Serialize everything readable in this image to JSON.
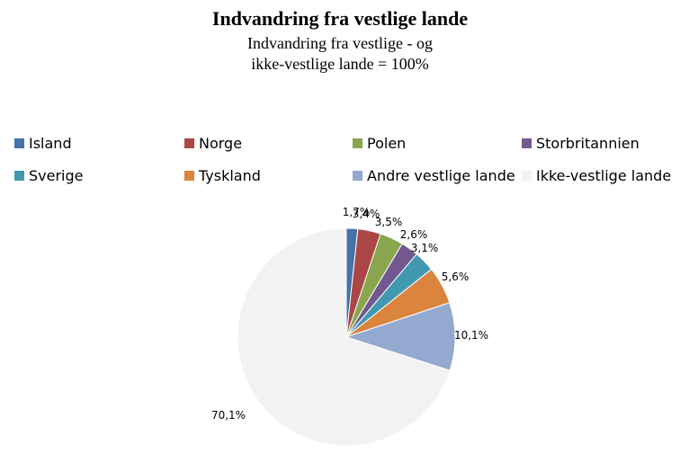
{
  "chart_data": {
    "type": "pie",
    "title": "Indvandring fra vestlige lande",
    "subtitle_lines": [
      "Indvandring fra vestlige - og",
      "ikke-vestlige lande = 100%"
    ],
    "legend_position": "top",
    "slices": [
      {
        "name": "Island",
        "value": 1.7,
        "label": "1,7%",
        "color": "#4572A7"
      },
      {
        "name": "Norge",
        "value": 3.4,
        "label": "3,4%",
        "color": "#AA4643"
      },
      {
        "name": "Polen",
        "value": 3.5,
        "label": "3,5%",
        "color": "#89A54E"
      },
      {
        "name": "Storbritannien",
        "value": 2.6,
        "label": "2,6%",
        "color": "#71588F"
      },
      {
        "name": "Sverige",
        "value": 3.1,
        "label": "3,1%",
        "color": "#4198AF"
      },
      {
        "name": "Tyskland",
        "value": 5.6,
        "label": "5,6%",
        "color": "#DB843D"
      },
      {
        "name": "Andre vestlige lande",
        "value": 10.1,
        "label": "10,1%",
        "color": "#93A9CF"
      },
      {
        "name": "Ikke-vestlige lande",
        "value": 70.1,
        "label": "70,1%",
        "color": "#F2F2F2"
      }
    ]
  }
}
